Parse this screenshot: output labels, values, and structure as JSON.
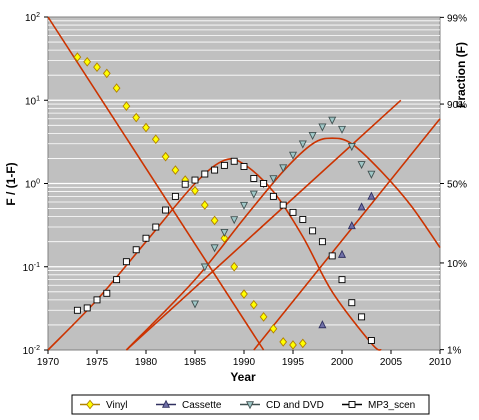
{
  "chart_data": {
    "type": "scatter",
    "xlabel": "Year",
    "ylabel_left": "F / (1-F)",
    "ylabel_right": "Fraction (F)",
    "xlim": [
      1970,
      2010
    ],
    "ylim": [
      0.01,
      100
    ],
    "yscale": "log",
    "x_ticks": [
      "1970",
      "1975",
      "1980",
      "1985",
      "1990",
      "1995",
      "2000",
      "2005",
      "2010"
    ],
    "y_ticks_left": [
      "10-2",
      "10-1",
      "100",
      "101",
      "102"
    ],
    "y_ticks_right": [
      {
        "label": "1%",
        "ratio": 0.0101
      },
      {
        "label": "10%",
        "ratio": 0.1111
      },
      {
        "label": "50%",
        "ratio": 1
      },
      {
        "label": "90%",
        "ratio": 9
      },
      {
        "label": "99%",
        "ratio": 99
      }
    ],
    "grid": "horizontal",
    "legend_placement": "bottom",
    "plot_background": "#c0c0c0",
    "fit_line_color": "#cc3300",
    "series": [
      {
        "name": "Vinyl",
        "marker": "diamond",
        "fill": "#ffff00",
        "stroke": "#b08000",
        "points": [
          [
            1973,
            33
          ],
          [
            1974,
            29
          ],
          [
            1975,
            25
          ],
          [
            1976,
            21
          ],
          [
            1977,
            14
          ],
          [
            1978,
            8.5
          ],
          [
            1979,
            6.2
          ],
          [
            1980,
            4.7
          ],
          [
            1981,
            3.4
          ],
          [
            1982,
            2.1
          ],
          [
            1983,
            1.45
          ],
          [
            1984,
            1.1
          ],
          [
            1985,
            0.82
          ],
          [
            1986,
            0.55
          ],
          [
            1987,
            0.36
          ],
          [
            1988,
            0.22
          ],
          [
            1989,
            0.1
          ],
          [
            1990,
            0.047
          ],
          [
            1991,
            0.035
          ],
          [
            1992,
            0.025
          ],
          [
            1993,
            0.018
          ],
          [
            1994,
            0.0125
          ],
          [
            1995,
            0.0115
          ],
          [
            1996,
            0.012
          ]
        ]
      },
      {
        "name": "Cassette",
        "marker": "triangle-up",
        "fill": "#7070a8",
        "stroke": "#303060",
        "points": [
          [
            1998,
            0.02
          ],
          [
            2000,
            0.14
          ],
          [
            2001,
            0.31
          ],
          [
            2002,
            0.52
          ],
          [
            2003,
            0.7
          ]
        ]
      },
      {
        "name": "CD and DVD",
        "marker": "triangle-down",
        "fill": "#a0c8c8",
        "stroke": "#405050",
        "points": [
          [
            1985,
            0.036
          ],
          [
            1986,
            0.1
          ],
          [
            1987,
            0.17
          ],
          [
            1988,
            0.26
          ],
          [
            1989,
            0.37
          ],
          [
            1990,
            0.55
          ],
          [
            1991,
            0.75
          ],
          [
            1992,
            1.0
          ],
          [
            1993,
            1.15
          ],
          [
            1994,
            1.55
          ],
          [
            1995,
            2.2
          ],
          [
            1996,
            3.0
          ],
          [
            1997,
            3.8
          ],
          [
            1998,
            4.8
          ],
          [
            1999,
            5.8
          ],
          [
            2000,
            4.5
          ],
          [
            2001,
            2.8
          ],
          [
            2002,
            1.7
          ],
          [
            2003,
            1.3
          ]
        ]
      },
      {
        "name": "MP3_scen",
        "marker": "square",
        "fill": "#ffffff",
        "stroke": "#000000",
        "points": [
          [
            1973,
            0.03
          ],
          [
            1974,
            0.032
          ],
          [
            1975,
            0.04
          ],
          [
            1976,
            0.048
          ],
          [
            1977,
            0.07
          ],
          [
            1978,
            0.115
          ],
          [
            1979,
            0.16
          ],
          [
            1980,
            0.22
          ],
          [
            1981,
            0.3
          ],
          [
            1982,
            0.48
          ],
          [
            1983,
            0.7
          ],
          [
            1984,
            0.98
          ],
          [
            1985,
            1.1
          ],
          [
            1986,
            1.3
          ],
          [
            1987,
            1.45
          ],
          [
            1988,
            1.65
          ],
          [
            1989,
            1.85
          ],
          [
            1990,
            1.6
          ],
          [
            1991,
            1.15
          ],
          [
            1992,
            1.0
          ],
          [
            1993,
            0.7
          ],
          [
            1994,
            0.55
          ],
          [
            1995,
            0.45
          ],
          [
            1996,
            0.37
          ],
          [
            1997,
            0.27
          ],
          [
            1998,
            0.2
          ],
          [
            1999,
            0.135
          ],
          [
            2000,
            0.07
          ],
          [
            2001,
            0.037
          ],
          [
            2002,
            0.025
          ],
          [
            2003,
            0.013
          ]
        ]
      }
    ],
    "fit_lines": [
      {
        "type": "line",
        "points": [
          [
            1970,
            100
          ],
          [
            1992,
            0.01
          ]
        ]
      },
      {
        "type": "line",
        "points": [
          [
            1978,
            0.01
          ],
          [
            2006,
            10
          ]
        ]
      },
      {
        "type": "line",
        "points": [
          [
            1991,
            0.01
          ],
          [
            2010,
            6
          ]
        ]
      },
      {
        "type": "curve",
        "points": [
          [
            1970,
            0.01
          ],
          [
            1975,
            0.04
          ],
          [
            1980,
            0.2
          ],
          [
            1985,
            1.0
          ],
          [
            1988,
            1.9
          ],
          [
            1990,
            1.7
          ],
          [
            1993,
            0.8
          ],
          [
            1996,
            0.23
          ],
          [
            1999,
            0.05
          ],
          [
            2003,
            0.012
          ],
          [
            2004,
            0.01
          ]
        ]
      },
      {
        "type": "curve",
        "points": [
          [
            1978,
            0.01
          ],
          [
            1985,
            0.07
          ],
          [
            1990,
            0.38
          ],
          [
            1994,
            1.4
          ],
          [
            1997,
            3.0
          ],
          [
            1999,
            3.5
          ],
          [
            2001,
            3.0
          ],
          [
            2004,
            1.4
          ],
          [
            2007,
            0.55
          ],
          [
            2010,
            0.17
          ]
        ]
      }
    ]
  }
}
